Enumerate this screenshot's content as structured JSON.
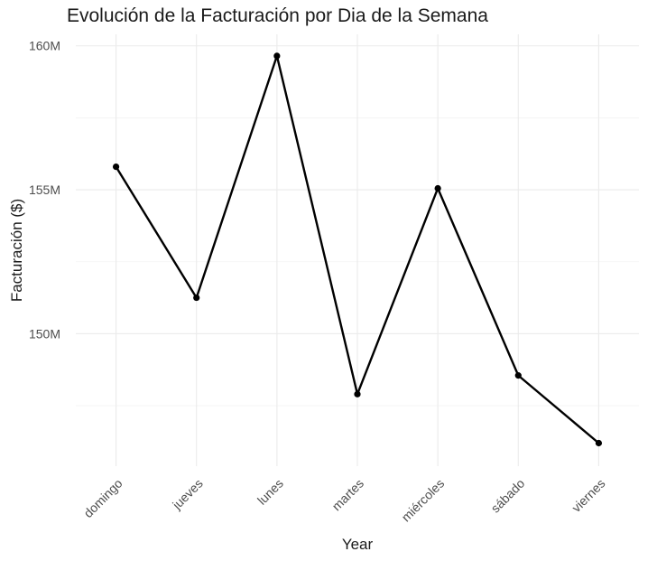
{
  "chart_data": {
    "type": "line",
    "title": "Evolución de la Facturación por Dia de la Semana",
    "xlabel": "Year",
    "ylabel": "Facturación ($)",
    "categories": [
      "domingo",
      "jueves",
      "lunes",
      "martes",
      "miércoles",
      "sábado",
      "viernes"
    ],
    "values": [
      155800000,
      151250000,
      159650000,
      147900000,
      155050000,
      148550000,
      146200000
    ],
    "y_ticks": [
      150000000,
      155000000,
      160000000
    ],
    "y_tick_labels": [
      "150M",
      "155M",
      "160M"
    ],
    "ylim": [
      145400000,
      160400000
    ],
    "line_color": "#000000",
    "grid": true,
    "legend": "none"
  }
}
